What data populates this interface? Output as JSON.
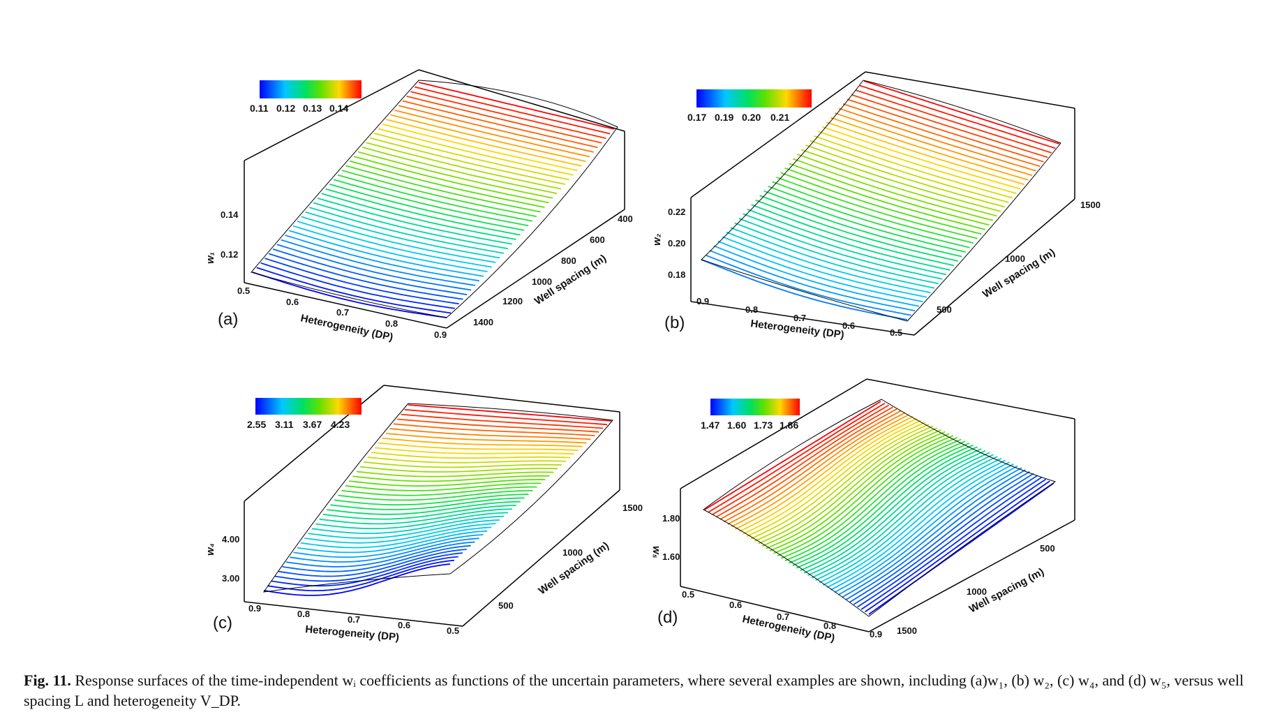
{
  "caption": {
    "fig_label": "Fig. 11.",
    "text": "Response surfaces of the time-independent wᵢ coefficients as functions of the uncertain parameters, where several examples are shown, including (a)w₁, (b) w₂, (c) w₄, and (d) w₅, versus well spacing L and heterogeneity V_DP."
  },
  "chart_data": [
    {
      "type": "surface",
      "panel": "(a)",
      "zlabel": "w₁",
      "xlabel": "Heterogeneity (DP)",
      "ylabel": "Well spacing (m)",
      "x_ticks": [
        "0.5",
        "0.6",
        "0.7",
        "0.8",
        "0.9"
      ],
      "y_ticks": [
        "400",
        "600",
        "800",
        "1000",
        "1200",
        "1400"
      ],
      "z_ticks": [
        "0.12",
        "0.14"
      ],
      "colorbar_ticks": [
        "0.11",
        "0.12",
        "0.13",
        "0.14"
      ],
      "xlim": [
        0.5,
        0.9
      ],
      "ylim": [
        300,
        1500
      ],
      "zlim": [
        0.105,
        0.15
      ],
      "peak": {
        "heterogeneity": 0.5,
        "well_spacing": 450,
        "value": 0.148
      },
      "minimum": {
        "heterogeneity": 0.9,
        "well_spacing": 1500,
        "value": 0.107
      },
      "colors": {
        "low": "#0000ff",
        "high": "#ff0000"
      }
    },
    {
      "type": "surface",
      "panel": "(b)",
      "zlabel": "w₂",
      "xlabel": "Heterogeneity (DP)",
      "ylabel": "Well spacing (m)",
      "x_ticks": [
        "0.9",
        "0.8",
        "0.7",
        "0.6",
        "0.5"
      ],
      "y_ticks": [
        "500",
        "1000",
        "1500"
      ],
      "z_ticks": [
        "0.18",
        "0.20",
        "0.22"
      ],
      "colorbar_ticks": [
        "0.17",
        "0.19",
        "0.20",
        "0.21"
      ],
      "xlim": [
        0.9,
        0.5
      ],
      "ylim": [
        300,
        1600
      ],
      "zlim": [
        0.165,
        0.23
      ],
      "peak": {
        "heterogeneity": 0.9,
        "well_spacing": 1600,
        "value": 0.225
      },
      "minimum": {
        "heterogeneity": 0.5,
        "well_spacing": 300,
        "value": 0.168
      }
    },
    {
      "type": "surface",
      "panel": "(c)",
      "zlabel": "w₄",
      "xlabel": "Heterogeneity (DP)",
      "ylabel": "Well spacing (m)",
      "x_ticks": [
        "0.9",
        "0.8",
        "0.7",
        "0.6",
        "0.5"
      ],
      "y_ticks": [
        "500",
        "1000",
        "1500"
      ],
      "z_ticks": [
        "3.00",
        "4.00"
      ],
      "colorbar_ticks": [
        "2.55",
        "3.11",
        "3.67",
        "4.23"
      ],
      "xlim": [
        0.9,
        0.5
      ],
      "ylim": [
        300,
        1600
      ],
      "zlim": [
        2.4,
        4.6
      ],
      "peak": {
        "heterogeneity": 0.9,
        "well_spacing": 1600,
        "value": 4.45
      },
      "minimum": {
        "heterogeneity": 0.9,
        "well_spacing": 300,
        "value": 2.5
      }
    },
    {
      "type": "surface",
      "panel": "(d)",
      "zlabel": "w₅",
      "xlabel": "Heterogeneity (DP)",
      "ylabel": "Well spacing (m)",
      "x_ticks": [
        "0.5",
        "0.6",
        "0.7",
        "0.8",
        "0.9"
      ],
      "y_ticks": [
        "500",
        "1000",
        "1500"
      ],
      "z_ticks": [
        "1.60",
        "1.80"
      ],
      "colorbar_ticks": [
        "1.47",
        "1.60",
        "1.73",
        "1.86"
      ],
      "xlim": [
        0.5,
        0.9
      ],
      "ylim": [
        300,
        1600
      ],
      "zlim": [
        1.4,
        1.95
      ],
      "peak": {
        "heterogeneity": 0.5,
        "well_spacing": 300,
        "value": 1.9
      },
      "minimum": {
        "heterogeneity": 0.9,
        "well_spacing": 1600,
        "value": 1.45
      }
    }
  ]
}
